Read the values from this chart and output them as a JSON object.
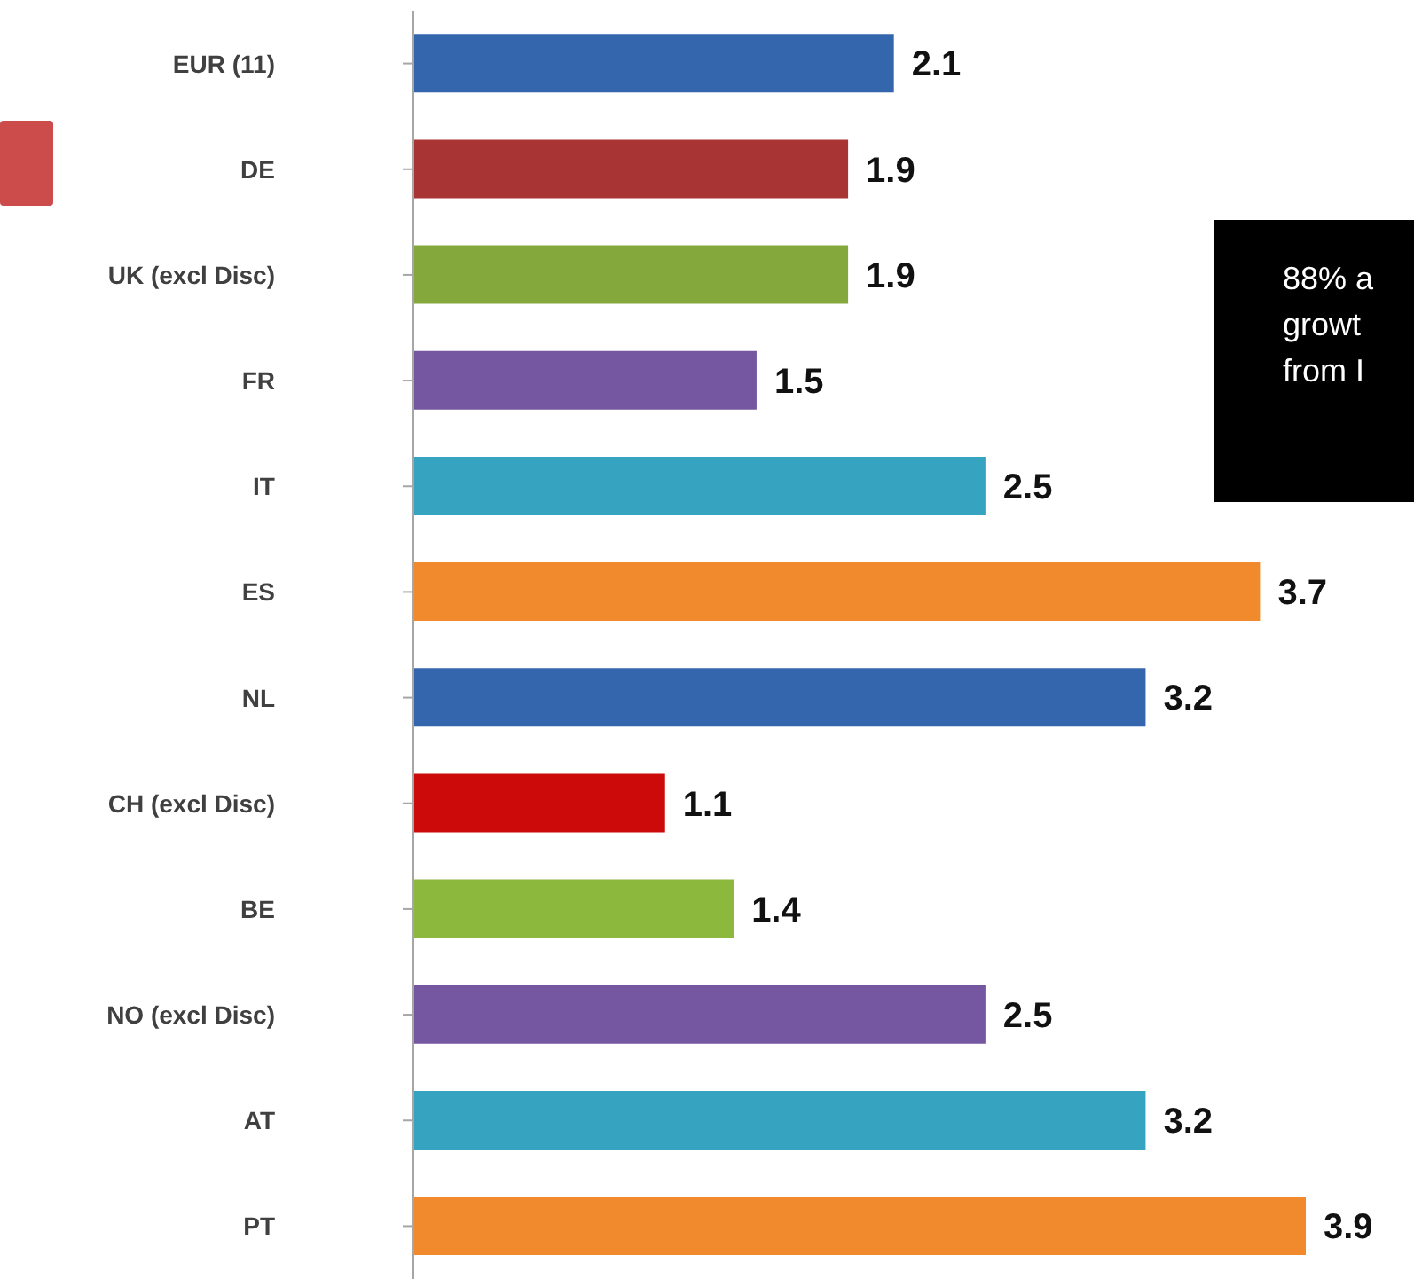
{
  "chart_data": {
    "type": "bar",
    "orientation": "horizontal",
    "categories": [
      "EUR (11)",
      "DE",
      "UK (excl Disc)",
      "FR",
      "IT",
      "ES",
      "NL",
      "CH (excl Disc)",
      "BE",
      "NO (excl Disc)",
      "AT",
      "PT"
    ],
    "values": [
      2.1,
      1.9,
      1.9,
      1.5,
      2.5,
      3.7,
      3.2,
      1.1,
      1.4,
      2.5,
      3.2,
      3.9
    ],
    "colors": [
      "#3466ad",
      "#a83434",
      "#84a83c",
      "#7556a0",
      "#36a3c0",
      "#f08a2c",
      "#3466ad",
      "#cc0a0a",
      "#8db83e",
      "#7556a0",
      "#36a3c0",
      "#f08a2c"
    ],
    "data_labels": true,
    "tick_labels": "y",
    "annotations": [
      "88% a\ngrowt\nfrom I"
    ]
  }
}
